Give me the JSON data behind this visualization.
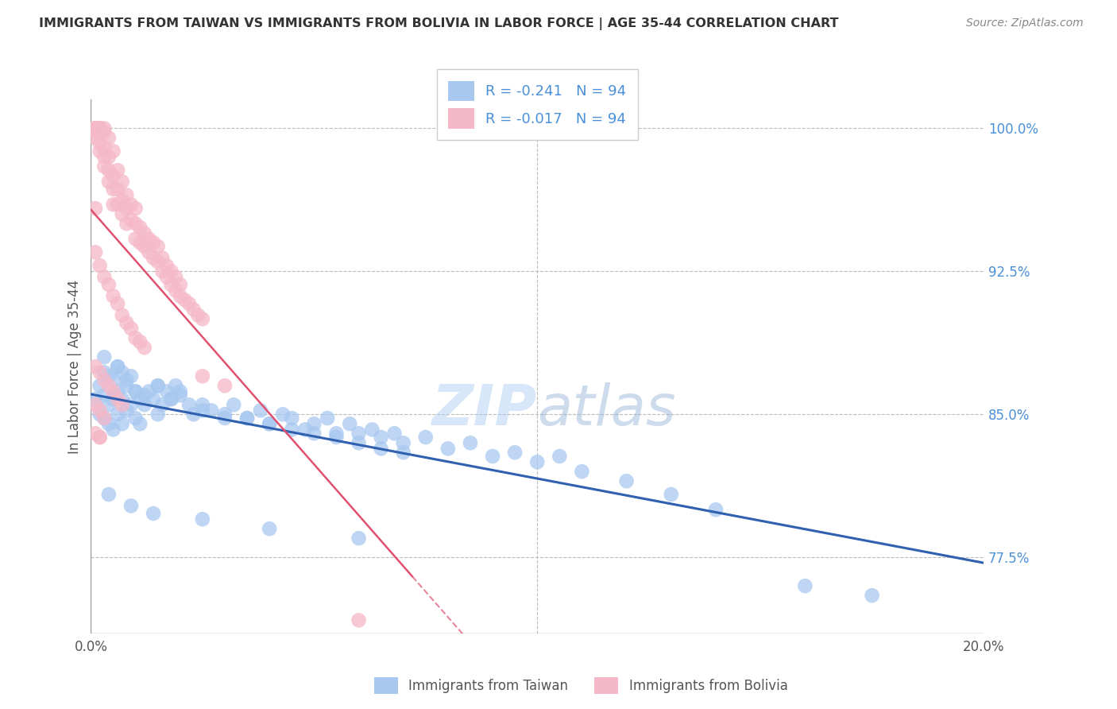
{
  "title": "IMMIGRANTS FROM TAIWAN VS IMMIGRANTS FROM BOLIVIA IN LABOR FORCE | AGE 35-44 CORRELATION CHART",
  "source": "Source: ZipAtlas.com",
  "ylabel_ticks": [
    100.0,
    92.5,
    85.0,
    77.5
  ],
  "ylabel_label": "In Labor Force | Age 35-44",
  "xlim": [
    0.0,
    0.2
  ],
  "ylim": [
    0.735,
    1.015
  ],
  "taiwan_R": -0.241,
  "taiwan_N": 94,
  "bolivia_R": -0.017,
  "bolivia_N": 94,
  "taiwan_color": "#A8C8F0",
  "bolivia_color": "#F5B8C8",
  "taiwan_line_color": "#3060B0",
  "bolivia_line_color": "#E05070",
  "taiwan_label": "Immigrants from Taiwan",
  "bolivia_label": "Immigrants from Bolivia",
  "watermark": "ZIPatlas",
  "background_color": "#FFFFFF",
  "grid_color": "#BBBBBB",
  "title_color": "#333333",
  "axis_label_color": "#555555",
  "right_axis_color": "#4A90D9",
  "taiwan_scatter_x": [
    0.001,
    0.002,
    0.002,
    0.003,
    0.003,
    0.003,
    0.004,
    0.004,
    0.004,
    0.005,
    0.005,
    0.005,
    0.006,
    0.006,
    0.006,
    0.007,
    0.007,
    0.007,
    0.008,
    0.008,
    0.009,
    0.009,
    0.01,
    0.01,
    0.011,
    0.011,
    0.012,
    0.013,
    0.014,
    0.015,
    0.015,
    0.016,
    0.017,
    0.018,
    0.019,
    0.02,
    0.022,
    0.023,
    0.025,
    0.027,
    0.03,
    0.032,
    0.035,
    0.038,
    0.04,
    0.043,
    0.045,
    0.048,
    0.05,
    0.053,
    0.055,
    0.058,
    0.06,
    0.063,
    0.065,
    0.068,
    0.07,
    0.075,
    0.08,
    0.085,
    0.09,
    0.095,
    0.1,
    0.105,
    0.11,
    0.12,
    0.13,
    0.14,
    0.003,
    0.006,
    0.008,
    0.01,
    0.012,
    0.015,
    0.018,
    0.02,
    0.025,
    0.03,
    0.035,
    0.04,
    0.045,
    0.05,
    0.055,
    0.06,
    0.065,
    0.07,
    0.004,
    0.009,
    0.014,
    0.025,
    0.04,
    0.06,
    0.16,
    0.175
  ],
  "taiwan_scatter_y": [
    0.858,
    0.865,
    0.85,
    0.872,
    0.86,
    0.848,
    0.87,
    0.855,
    0.845,
    0.868,
    0.858,
    0.842,
    0.875,
    0.862,
    0.85,
    0.872,
    0.858,
    0.845,
    0.865,
    0.852,
    0.87,
    0.855,
    0.862,
    0.848,
    0.858,
    0.845,
    0.855,
    0.862,
    0.858,
    0.865,
    0.85,
    0.855,
    0.862,
    0.858,
    0.865,
    0.86,
    0.855,
    0.85,
    0.855,
    0.852,
    0.848,
    0.855,
    0.848,
    0.852,
    0.845,
    0.85,
    0.848,
    0.842,
    0.845,
    0.848,
    0.84,
    0.845,
    0.84,
    0.842,
    0.838,
    0.84,
    0.835,
    0.838,
    0.832,
    0.835,
    0.828,
    0.83,
    0.825,
    0.828,
    0.82,
    0.815,
    0.808,
    0.8,
    0.88,
    0.875,
    0.868,
    0.862,
    0.86,
    0.865,
    0.858,
    0.862,
    0.852,
    0.85,
    0.848,
    0.845,
    0.842,
    0.84,
    0.838,
    0.835,
    0.832,
    0.83,
    0.808,
    0.802,
    0.798,
    0.795,
    0.79,
    0.785,
    0.76,
    0.755
  ],
  "bolivia_scatter_x": [
    0.001,
    0.001,
    0.001,
    0.001,
    0.001,
    0.001,
    0.001,
    0.002,
    0.002,
    0.002,
    0.002,
    0.002,
    0.002,
    0.003,
    0.003,
    0.003,
    0.003,
    0.003,
    0.004,
    0.004,
    0.004,
    0.004,
    0.005,
    0.005,
    0.005,
    0.005,
    0.006,
    0.006,
    0.006,
    0.007,
    0.007,
    0.007,
    0.008,
    0.008,
    0.008,
    0.009,
    0.009,
    0.01,
    0.01,
    0.01,
    0.011,
    0.011,
    0.012,
    0.012,
    0.013,
    0.013,
    0.014,
    0.014,
    0.015,
    0.015,
    0.016,
    0.016,
    0.017,
    0.017,
    0.018,
    0.018,
    0.019,
    0.019,
    0.02,
    0.02,
    0.021,
    0.022,
    0.023,
    0.024,
    0.025,
    0.001,
    0.002,
    0.003,
    0.004,
    0.005,
    0.006,
    0.007,
    0.008,
    0.009,
    0.01,
    0.011,
    0.012,
    0.001,
    0.002,
    0.003,
    0.004,
    0.005,
    0.006,
    0.007,
    0.001,
    0.002,
    0.003,
    0.001,
    0.002,
    0.025,
    0.03,
    0.002,
    0.06,
    0.001
  ],
  "bolivia_scatter_y": [
    1.0,
    1.0,
    1.0,
    1.0,
    1.0,
    0.998,
    0.995,
    1.0,
    1.0,
    1.0,
    0.998,
    0.992,
    0.988,
    1.0,
    0.998,
    0.99,
    0.985,
    0.98,
    0.995,
    0.985,
    0.978,
    0.972,
    0.988,
    0.975,
    0.968,
    0.96,
    0.978,
    0.968,
    0.96,
    0.972,
    0.962,
    0.955,
    0.965,
    0.958,
    0.95,
    0.96,
    0.952,
    0.958,
    0.95,
    0.942,
    0.948,
    0.94,
    0.945,
    0.938,
    0.942,
    0.935,
    0.94,
    0.932,
    0.938,
    0.93,
    0.932,
    0.925,
    0.928,
    0.922,
    0.925,
    0.918,
    0.922,
    0.915,
    0.918,
    0.912,
    0.91,
    0.908,
    0.905,
    0.902,
    0.9,
    0.935,
    0.928,
    0.922,
    0.918,
    0.912,
    0.908,
    0.902,
    0.898,
    0.895,
    0.89,
    0.888,
    0.885,
    0.875,
    0.872,
    0.868,
    0.865,
    0.862,
    0.858,
    0.855,
    0.855,
    0.852,
    0.848,
    0.84,
    0.838,
    0.87,
    0.865,
    0.838,
    0.742,
    0.958
  ]
}
